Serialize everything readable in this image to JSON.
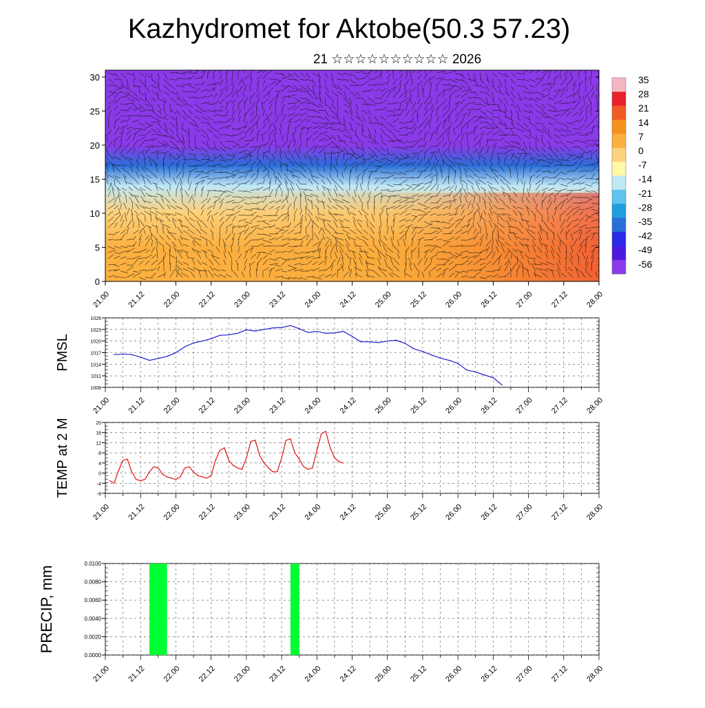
{
  "title": "Kazhydromet for Aktobe(50.3 57.23)",
  "subtitle": "21 ☆☆☆☆☆☆☆☆☆☆ 2026",
  "time_labels": [
    "21.00",
    "21.12",
    "22.00",
    "22.12",
    "23.00",
    "23.12",
    "24.00",
    "24.12",
    "25.00",
    "25.12",
    "26.00",
    "26.12",
    "27.00",
    "27.12",
    "28.00"
  ],
  "chart_data": [
    {
      "type": "heatmap",
      "name": "cross-section",
      "title": "",
      "x_categories": [
        "21.00",
        "21.12",
        "22.00",
        "22.12",
        "23.00",
        "23.12",
        "24.00",
        "24.12",
        "25.00",
        "25.12",
        "26.00",
        "26.12",
        "27.00",
        "27.12",
        "28.00"
      ],
      "ylim": [
        0,
        31
      ],
      "yticks": [
        0,
        5,
        10,
        15,
        20,
        25,
        30
      ],
      "colorbar": {
        "labels": [
          "35",
          "28",
          "21",
          "14",
          "7",
          "0",
          "-7",
          "-14",
          "-21",
          "-28",
          "-35",
          "-42",
          "-49",
          "-56"
        ],
        "colors": [
          "#f4b6c2",
          "#e8202a",
          "#f15a22",
          "#f6921e",
          "#fbb040",
          "#fdd27c",
          "#fff9a8",
          "#bfe8f5",
          "#5ec3ee",
          "#1f9fe0",
          "#2a6ed8",
          "#2a2ae8",
          "#4a1ae0",
          "#8a3ae8"
        ]
      },
      "temperature_layers": [
        {
          "height": 0,
          "value": 12
        },
        {
          "height": 5,
          "value": 8
        },
        {
          "height": 10,
          "value": 0
        },
        {
          "height": 14,
          "value": -10
        },
        {
          "height": 17,
          "value": -30
        },
        {
          "height": 20,
          "value": -50
        },
        {
          "height": 22,
          "value": -58
        },
        {
          "height": 26,
          "value": -56
        },
        {
          "height": 31,
          "value": -52
        }
      ]
    },
    {
      "type": "line",
      "name": "pmsl",
      "ylabel": "PMSL",
      "color": "#1a1acc",
      "ylim": [
        1008,
        1026
      ],
      "yticks": [
        1008,
        1011,
        1014,
        1017,
        1020,
        1023,
        1026
      ],
      "x_categories": [
        "21.00",
        "21.12",
        "22.00",
        "22.12",
        "23.00",
        "23.12",
        "24.00",
        "24.12",
        "25.00",
        "25.12",
        "26.00",
        "26.12",
        "27.00",
        "27.12",
        "28.00"
      ],
      "values": [
        1016.5,
        1016.6,
        1016.5,
        1015.8,
        1015.0,
        1015.5,
        1016.0,
        1017.0,
        1018.5,
        1019.5,
        1020.0,
        1020.6,
        1021.5,
        1021.6,
        1022.0,
        1022.9,
        1022.6,
        1023.0,
        1023.4,
        1023.5,
        1024.0,
        1023.2,
        1022.2,
        1022.5,
        1022.0,
        1022.1,
        1022.5,
        1021.2,
        1019.8,
        1019.8,
        1019.6,
        1020.0,
        1020.2,
        1019.4,
        1018.0,
        1017.3,
        1016.4,
        1015.6,
        1015.0,
        1014.2,
        1012.5,
        1012.0,
        1011.2,
        1010.5,
        1008.6
      ],
      "x_index": [
        0,
        0.25,
        0.5,
        0.75,
        1,
        1.25,
        1.5,
        1.75,
        2,
        2.25,
        2.5,
        2.75,
        3,
        3.25,
        3.5,
        3.75,
        4,
        4.25,
        4.5,
        4.75,
        5,
        5.25,
        5.5,
        5.75,
        6,
        6.25,
        6.5,
        6.75,
        7,
        7.25,
        7.5,
        7.75,
        8,
        8.25,
        8.5,
        8.75,
        9,
        9.25,
        9.5,
        9.75,
        10,
        10.25,
        10.5,
        10.75,
        11
      ]
    },
    {
      "type": "line",
      "name": "temp2m",
      "ylabel": "TEMP at 2 M",
      "color": "#e01010",
      "ylim": [
        -8,
        20
      ],
      "yticks": [
        -8,
        -4,
        0,
        4,
        8,
        12,
        16,
        20
      ],
      "x_categories": [
        "21.00",
        "21.12",
        "22.00",
        "22.12",
        "23.00",
        "23.12",
        "24.00",
        "24.12",
        "25.00",
        "25.12",
        "26.00",
        "26.12",
        "27.00",
        "27.12",
        "28.00"
      ],
      "values": [
        -3.0,
        -4.0,
        1.0,
        5.0,
        5.5,
        0.5,
        -2.5,
        -3.0,
        -2.5,
        0.5,
        2.5,
        2.0,
        -0.5,
        -1.5,
        -2.0,
        -2.5,
        -1.5,
        2.0,
        2.5,
        0.5,
        -1.0,
        -1.5,
        -2.0,
        -1.0,
        5.0,
        9.0,
        10.0,
        5.0,
        3.0,
        2.0,
        1.5,
        6.0,
        12.5,
        13.0,
        7.0,
        4.0,
        2.0,
        0.5,
        0.5,
        6.0,
        13.0,
        13.5,
        8.0,
        5.5,
        2.5,
        1.5,
        2.0,
        9.0,
        15.5,
        16.5,
        10.0,
        6.0,
        4.5,
        4.0
      ],
      "x_index": [
        0,
        0.125,
        0.25,
        0.375,
        0.5,
        0.625,
        0.75,
        0.875,
        1,
        1.125,
        1.25,
        1.375,
        1.5,
        1.625,
        1.75,
        1.875,
        2,
        2.125,
        2.25,
        2.375,
        2.5,
        2.625,
        2.75,
        2.875,
        3,
        3.125,
        3.25,
        3.375,
        3.5,
        3.625,
        3.75,
        3.875,
        4,
        4.125,
        4.25,
        4.375,
        4.5,
        4.625,
        4.75,
        4.875,
        5,
        5.125,
        5.25,
        5.375,
        5.5,
        5.625,
        5.75,
        5.875,
        6,
        6.125,
        6.25,
        6.375,
        6.5,
        6.625
      ]
    },
    {
      "type": "bar",
      "name": "precip",
      "ylabel": "PRECIP, mm",
      "color": "#00ff33",
      "ylim": [
        0,
        0.01
      ],
      "yticks": [
        "0.0000",
        "0.0020",
        "0.0040",
        "0.0060",
        "0.0080",
        "0.0100"
      ],
      "x_categories": [
        "21.00",
        "21.12",
        "22.00",
        "22.12",
        "23.00",
        "23.12",
        "24.00",
        "24.12",
        "25.00",
        "25.12",
        "26.00",
        "26.12",
        "27.00",
        "27.12",
        "28.00"
      ],
      "bars": [
        {
          "x_start": 1.25,
          "x_end": 1.75,
          "value": 0.01
        },
        {
          "x_start": 5.25,
          "x_end": 5.5,
          "value": 0.01
        }
      ]
    }
  ]
}
